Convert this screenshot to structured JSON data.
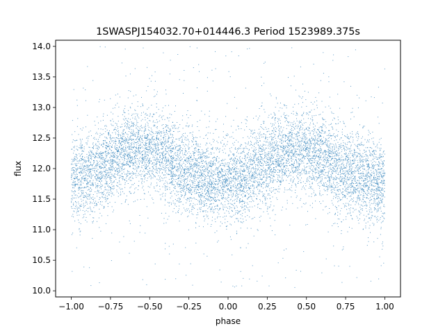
{
  "chart_data": {
    "type": "scatter",
    "title": "1SWASPJ154032.70+014446.3 Period 1523989.375s",
    "xlabel": "phase",
    "ylabel": "flux",
    "xlim": [
      -1.1,
      1.1
    ],
    "ylim": [
      9.9,
      14.1
    ],
    "x_ticks": [
      "−1.00",
      "−0.75",
      "−0.50",
      "−0.25",
      "0.00",
      "0.25",
      "0.50",
      "0.75",
      "1.00"
    ],
    "x_tick_values": [
      -1.0,
      -0.75,
      -0.5,
      -0.25,
      0.0,
      0.25,
      0.5,
      0.75,
      1.0
    ],
    "y_ticks": [
      "10.0",
      "10.5",
      "11.0",
      "11.5",
      "12.0",
      "12.5",
      "13.0",
      "13.5",
      "14.0"
    ],
    "y_tick_values": [
      10.0,
      10.5,
      11.0,
      11.5,
      12.0,
      12.5,
      13.0,
      13.5,
      14.0
    ],
    "grid": false,
    "legend": "none",
    "marker_color": "#1f77b4",
    "series": [
      {
        "x_range": [
          -1.0,
          1.0
        ],
        "trend": {
          "phase": [
            -1.0,
            -0.9,
            -0.8,
            -0.7,
            -0.6,
            -0.5,
            -0.4,
            -0.3,
            -0.2,
            -0.1,
            0.0,
            0.1,
            0.2,
            0.3,
            0.4,
            0.5,
            0.6,
            0.7,
            0.8,
            0.9,
            1.0
          ],
          "flux": [
            11.8,
            11.9,
            12.0,
            12.2,
            12.3,
            12.3,
            12.2,
            12.0,
            11.9,
            11.8,
            11.75,
            11.85,
            12.0,
            12.2,
            12.3,
            12.3,
            12.2,
            12.0,
            11.9,
            11.8,
            11.75
          ]
        },
        "core_scatter": 0.35,
        "outlier_range": [
          10.05,
          14.0
        ]
      }
    ]
  }
}
